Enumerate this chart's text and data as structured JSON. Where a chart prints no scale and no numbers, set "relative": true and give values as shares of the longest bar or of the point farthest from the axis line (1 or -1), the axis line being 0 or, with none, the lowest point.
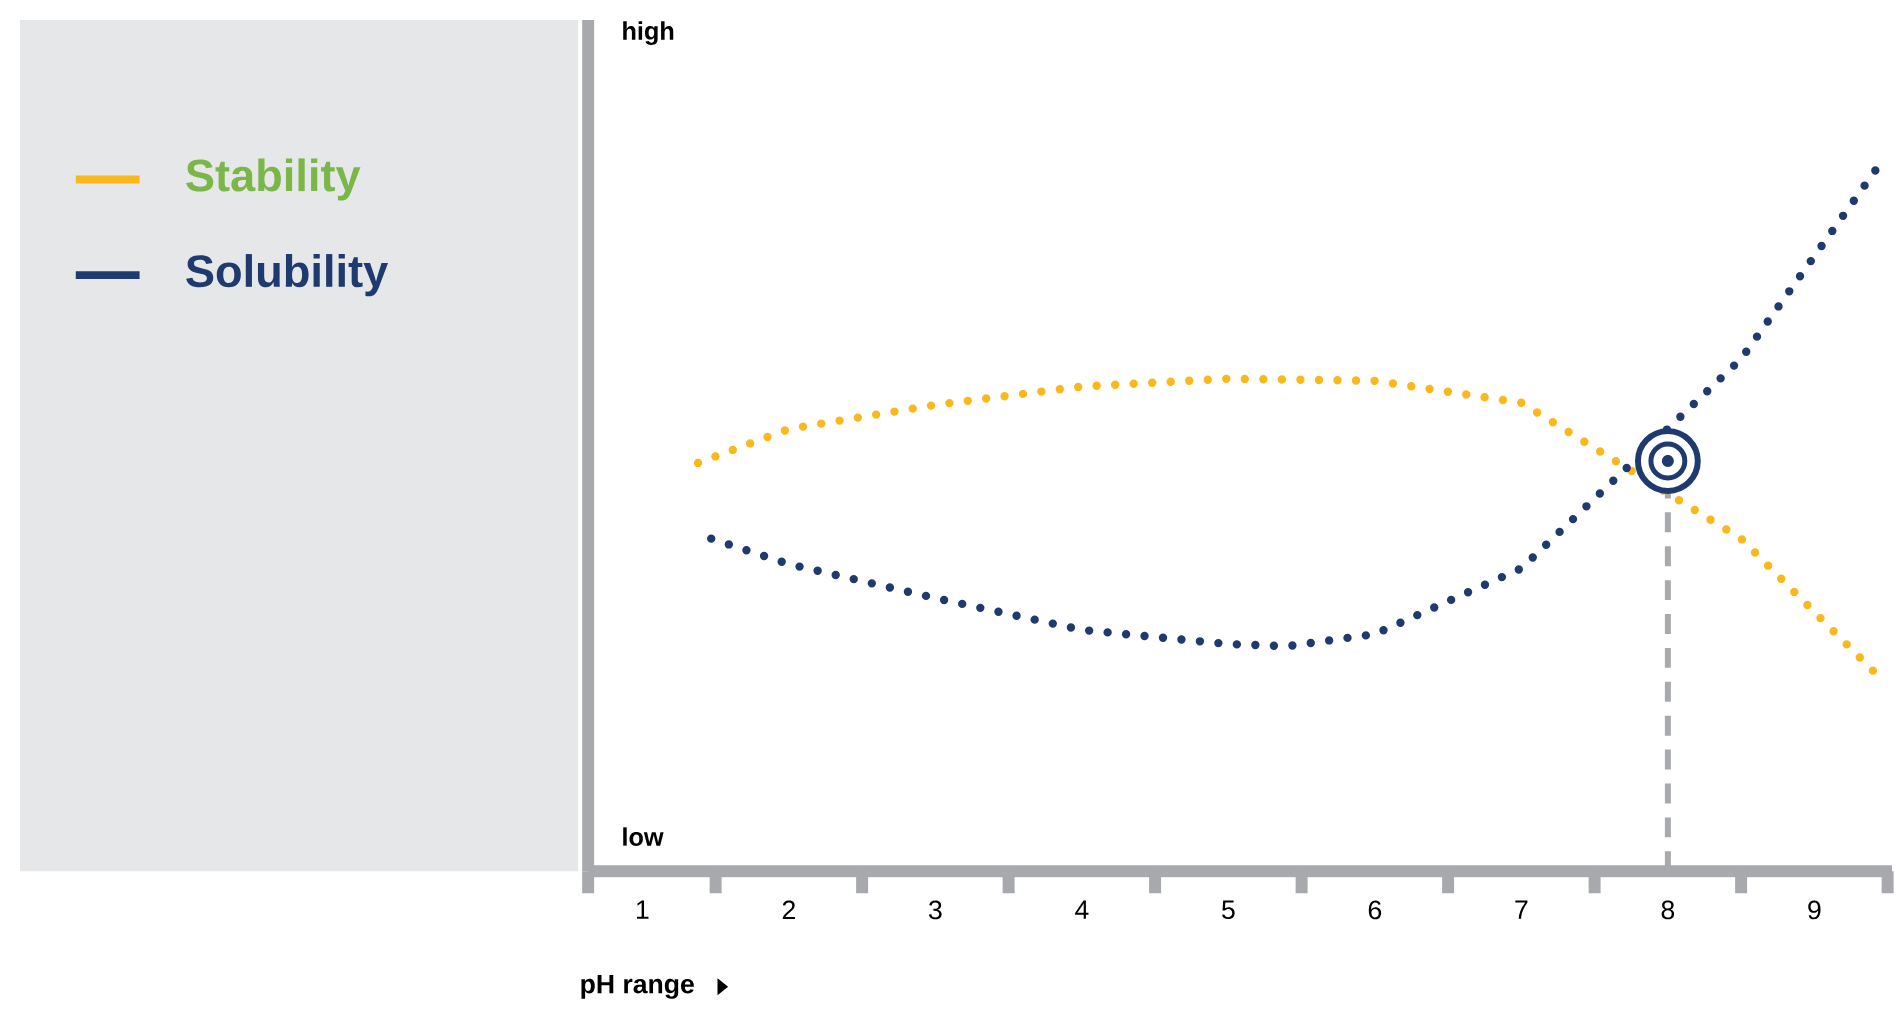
{
  "chart_data": {
    "type": "line",
    "relative": true,
    "xlabel": "pH range",
    "annotations": [
      "high",
      "low"
    ],
    "xlim": [
      0.63,
      9.53
    ],
    "xticks": [
      {
        "value": 1,
        "label": "1"
      },
      {
        "value": 2,
        "label": "2"
      },
      {
        "value": 3,
        "label": "3"
      },
      {
        "value": 4,
        "label": "4"
      },
      {
        "value": 5,
        "label": "5"
      },
      {
        "value": 6,
        "label": "6"
      },
      {
        "value": 7,
        "label": "7"
      },
      {
        "value": 8,
        "label": "8"
      },
      {
        "value": 9,
        "label": "9"
      },
      {
        "value": 0.63,
        "label": null
      },
      {
        "value": 1.5,
        "label": null
      },
      {
        "value": 2.5,
        "label": null
      },
      {
        "value": 3.5,
        "label": null
      },
      {
        "value": 4.5,
        "label": null
      },
      {
        "value": 5.5,
        "label": null
      },
      {
        "value": 6.5,
        "label": null
      },
      {
        "value": 7.5,
        "label": null
      },
      {
        "value": 8.5,
        "label": null
      },
      {
        "value": 9.5,
        "label": null
      }
    ],
    "series": [
      {
        "name": "Stability",
        "color": "#f9b81b",
        "x": [
          1.38,
          2,
          3,
          4,
          5,
          6,
          7,
          7.98,
          8.5,
          9.45
        ],
        "values": [
          0.577,
          0.625,
          0.659,
          0.685,
          0.696,
          0.693,
          0.662,
          null,
          0.47,
          0.273
        ]
      },
      {
        "name": "Solubility",
        "color": "#1f3a6e",
        "x": [
          1.47,
          2,
          3,
          4,
          5,
          5.4,
          6,
          7,
          7.98,
          8.5,
          9.45
        ],
        "values": [
          0.47,
          0.434,
          0.386,
          0.341,
          0.321,
          0.318,
          0.335,
          0.428,
          null,
          0.724,
          1.0
        ]
      }
    ],
    "ref_lines": [
      {
        "axis": "x",
        "value": 8
      }
    ],
    "legend": "left",
    "line_style": "dotted"
  }
}
